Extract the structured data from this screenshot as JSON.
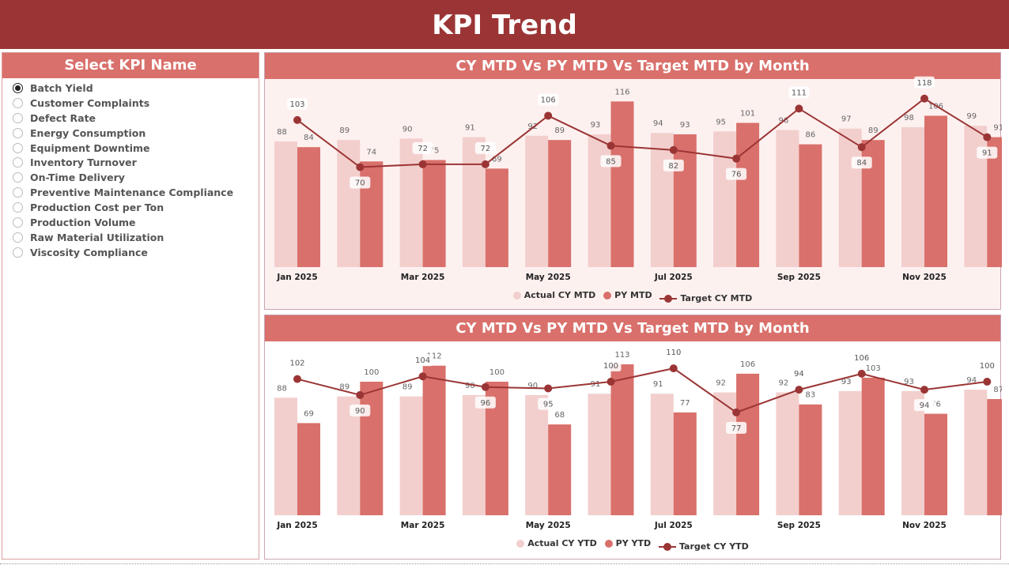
{
  "header": {
    "title": "KPI Trend"
  },
  "slicer": {
    "title": "Select KPI Name",
    "selected": "Batch Yield",
    "items": [
      "Batch Yield",
      "Customer Complaints",
      "Defect Rate",
      "Energy Consumption",
      "Equipment Downtime",
      "Inventory Turnover",
      "On-Time Delivery",
      "Preventive Maintenance Compliance",
      "Production Cost per Ton",
      "Production Volume",
      "Raw Material Utilization",
      "Viscosity Compliance"
    ]
  },
  "colors": {
    "header": "#9b3535",
    "panel": "#d9706b",
    "actual": "#f2cfcd",
    "py": "#d9706b",
    "target": "#9b3535"
  },
  "chart_data": [
    {
      "type": "bar",
      "title": "CY MTD Vs PY MTD Vs Target MTD by Month",
      "categories": [
        "Jan 2025",
        "Feb 2025",
        "Mar 2025",
        "Apr 2025",
        "May 2025",
        "Jun 2025",
        "Jul 2025",
        "Aug 2025",
        "Sep 2025",
        "Oct 2025",
        "Nov 2025",
        "Dec 2025"
      ],
      "tick_labels": [
        "Jan 2025",
        "",
        "Mar 2025",
        "",
        "May 2025",
        "",
        "Jul 2025",
        "",
        "Sep 2025",
        "",
        "Nov 2025",
        ""
      ],
      "series": [
        {
          "name": "Actual CY MTD",
          "kind": "bar",
          "values": [
            88,
            89,
            90,
            91,
            92,
            93,
            94,
            95,
            96,
            97,
            98,
            99
          ]
        },
        {
          "name": "PY MTD",
          "kind": "bar",
          "values": [
            84,
            74,
            75,
            69,
            89,
            116,
            93,
            101,
            86,
            89,
            106,
            91
          ]
        },
        {
          "name": "Target CY MTD",
          "kind": "line",
          "values": [
            103,
            70,
            72,
            72,
            106,
            85,
            82,
            76,
            111,
            84,
            118,
            91
          ]
        }
      ],
      "legend": "bottom-center",
      "grid": false
    },
    {
      "type": "bar",
      "title": "CY MTD Vs PY MTD Vs Target MTD by Month",
      "categories": [
        "Jan 2025",
        "Feb 2025",
        "Mar 2025",
        "Apr 2025",
        "May 2025",
        "Jun 2025",
        "Jul 2025",
        "Aug 2025",
        "Sep 2025",
        "Oct 2025",
        "Nov 2025",
        "Dec 2025"
      ],
      "tick_labels": [
        "Jan 2025",
        "",
        "Mar 2025",
        "",
        "May 2025",
        "",
        "Jul 2025",
        "",
        "Sep 2025",
        "",
        "Nov 2025",
        ""
      ],
      "series": [
        {
          "name": "Actual CY YTD",
          "kind": "bar",
          "values": [
            88,
            89,
            89,
            90,
            90,
            91,
            91,
            92,
            92,
            93,
            93,
            94
          ]
        },
        {
          "name": "PY YTD",
          "kind": "bar",
          "values": [
            69,
            100,
            112,
            100,
            68,
            113,
            77,
            106,
            83,
            103,
            76,
            87
          ]
        },
        {
          "name": "Target CY YTD",
          "kind": "line",
          "values": [
            102,
            90,
            104,
            96,
            95,
            100,
            110,
            77,
            94,
            106,
            94,
            100
          ]
        }
      ],
      "legend": "bottom-center",
      "grid": false
    }
  ]
}
